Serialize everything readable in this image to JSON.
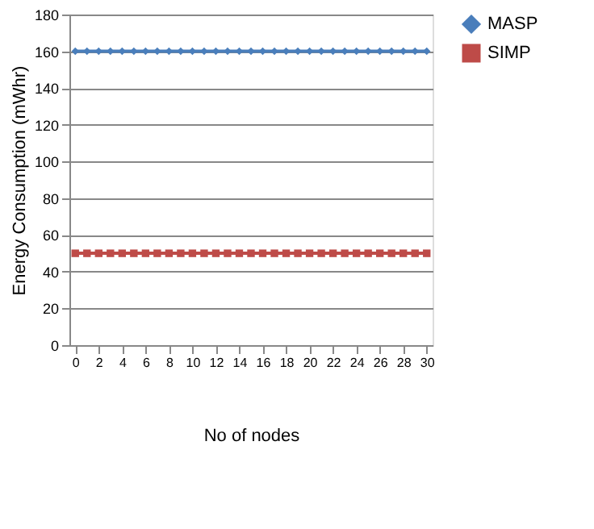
{
  "chart_data": {
    "type": "line",
    "xlabel": "No of nodes",
    "ylabel": "Energy Consumption (mWhr)",
    "x": [
      0,
      1,
      2,
      3,
      4,
      5,
      6,
      7,
      8,
      9,
      10,
      11,
      12,
      13,
      14,
      15,
      16,
      17,
      18,
      19,
      20,
      21,
      22,
      23,
      24,
      25,
      26,
      27,
      28,
      29,
      30
    ],
    "xlim": [
      -0.5,
      30.5
    ],
    "xticks": [
      0,
      2,
      4,
      6,
      8,
      10,
      12,
      14,
      16,
      18,
      20,
      22,
      24,
      26,
      28,
      30
    ],
    "ylim": [
      0,
      180
    ],
    "yticks": [
      0,
      20,
      40,
      60,
      80,
      100,
      120,
      140,
      160,
      180
    ],
    "grid": "y",
    "legend": "right",
    "line_style": "solid",
    "series": [
      {
        "name": "MASP",
        "color": "#4a7ebb",
        "marker": "diamond",
        "values": [
          160,
          160,
          160,
          160,
          160,
          160,
          160,
          160,
          160,
          160,
          160,
          160,
          160,
          160,
          160,
          160,
          160,
          160,
          160,
          160,
          160,
          160,
          160,
          160,
          160,
          160,
          160,
          160,
          160,
          160,
          160
        ]
      },
      {
        "name": "SIMP",
        "color": "#be4b48",
        "marker": "square",
        "values": [
          50,
          50,
          50,
          50,
          50,
          50,
          50,
          50,
          50,
          50,
          50,
          50,
          50,
          50,
          50,
          50,
          50,
          50,
          50,
          50,
          50,
          50,
          50,
          50,
          50,
          50,
          50,
          50,
          50,
          50,
          50
        ]
      }
    ]
  }
}
